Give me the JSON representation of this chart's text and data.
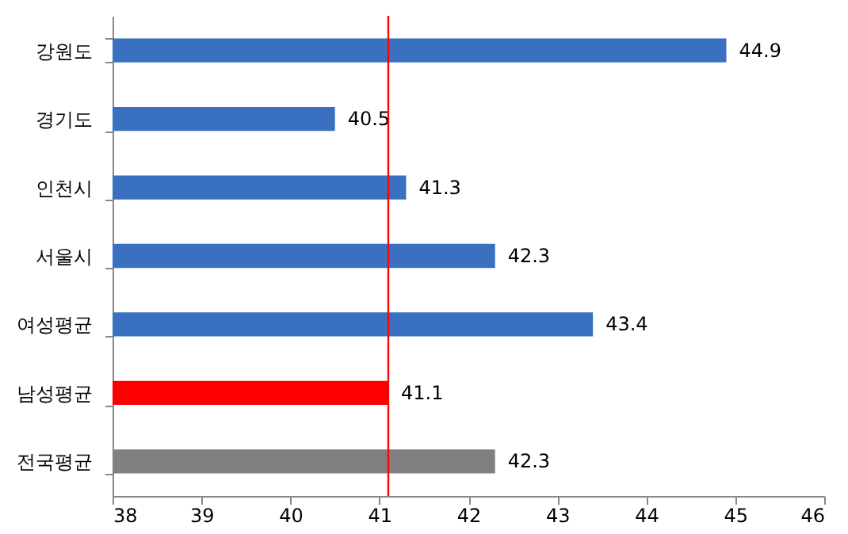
{
  "chart_data": {
    "type": "bar",
    "orientation": "horizontal",
    "categories": [
      "강원도",
      "경기도",
      "인천시",
      "서울시",
      "여성평균",
      "남성평균",
      "전국평균"
    ],
    "values": [
      44.9,
      40.5,
      41.3,
      42.3,
      43.4,
      41.1,
      42.3
    ],
    "colors": [
      "#3a70c0",
      "#3a70c0",
      "#3a70c0",
      "#3a70c0",
      "#3a70c0",
      "#ff0000",
      "#808080"
    ],
    "xlim": [
      38,
      46
    ],
    "xticks": [
      38,
      39,
      40,
      41,
      42,
      43,
      44,
      45,
      46
    ],
    "data_labels": true,
    "grid": false,
    "ref_lines": [
      {
        "axis": "x",
        "value": 41.1,
        "color": "#ff0000"
      }
    ]
  }
}
